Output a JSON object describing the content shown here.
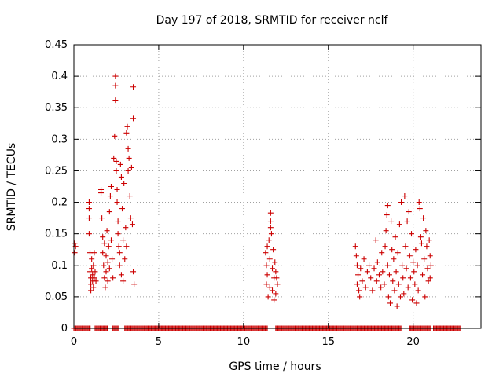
{
  "chart_data": {
    "type": "scatter",
    "title": "Day 197 of 2018, SRMTID for receiver nclf",
    "xlabel": "GPS time / hours",
    "ylabel": "SRMTID / TECUs",
    "xlim": [
      0,
      24
    ],
    "ylim": [
      0,
      0.45
    ],
    "xticks": [
      0,
      5,
      10,
      15,
      20
    ],
    "yticks": [
      0,
      0.05,
      0.1,
      0.15,
      0.2,
      0.25,
      0.3,
      0.35,
      0.4,
      0.45
    ],
    "xtick_labels": [
      "0",
      "5",
      "10",
      "15",
      "20"
    ],
    "ytick_labels": [
      "0",
      "0.05",
      "0.1",
      "0.15",
      "0.2",
      "0.25",
      "0.3",
      "0.35",
      "0.4",
      "0.45"
    ],
    "grid": true,
    "marker": "+",
    "color": "#cc0000",
    "points": [
      [
        0.05,
        0.135
      ],
      [
        0.05,
        0.12
      ],
      [
        0.1,
        0.13
      ],
      [
        0.9,
        0.2
      ],
      [
        0.9,
        0.19
      ],
      [
        0.9,
        0.175
      ],
      [
        0.9,
        0.15
      ],
      [
        0.95,
        0.12
      ],
      [
        0.95,
        0.09
      ],
      [
        1.0,
        0.08
      ],
      [
        1.0,
        0.07
      ],
      [
        1.0,
        0.06
      ],
      [
        1.05,
        0.11
      ],
      [
        1.05,
        0.095
      ],
      [
        1.1,
        0.085
      ],
      [
        1.1,
        0.075
      ],
      [
        1.15,
        0.1
      ],
      [
        1.15,
        0.065
      ],
      [
        1.2,
        0.12
      ],
      [
        1.2,
        0.08
      ],
      [
        1.25,
        0.09
      ],
      [
        1.3,
        0.075
      ],
      [
        1.6,
        0.22
      ],
      [
        1.6,
        0.215
      ],
      [
        1.65,
        0.175
      ],
      [
        1.7,
        0.145
      ],
      [
        1.7,
        0.12
      ],
      [
        1.75,
        0.1
      ],
      [
        1.8,
        0.135
      ],
      [
        1.8,
        0.08
      ],
      [
        1.85,
        0.065
      ],
      [
        1.9,
        0.115
      ],
      [
        1.9,
        0.09
      ],
      [
        1.95,
        0.155
      ],
      [
        2.0,
        0.105
      ],
      [
        2.0,
        0.075
      ],
      [
        2.05,
        0.13
      ],
      [
        2.1,
        0.185
      ],
      [
        2.1,
        0.095
      ],
      [
        2.15,
        0.21
      ],
      [
        2.2,
        0.225
      ],
      [
        2.2,
        0.14
      ],
      [
        2.25,
        0.11
      ],
      [
        2.3,
        0.08
      ],
      [
        2.35,
        0.27
      ],
      [
        2.4,
        0.305
      ],
      [
        2.45,
        0.4
      ],
      [
        2.45,
        0.385
      ],
      [
        2.45,
        0.362
      ],
      [
        2.5,
        0.265
      ],
      [
        2.5,
        0.25
      ],
      [
        2.55,
        0.22
      ],
      [
        2.55,
        0.2
      ],
      [
        2.6,
        0.17
      ],
      [
        2.6,
        0.15
      ],
      [
        2.65,
        0.13
      ],
      [
        2.7,
        0.12
      ],
      [
        2.7,
        0.1
      ],
      [
        2.75,
        0.26
      ],
      [
        2.8,
        0.24
      ],
      [
        2.8,
        0.085
      ],
      [
        2.85,
        0.19
      ],
      [
        2.9,
        0.14
      ],
      [
        2.9,
        0.075
      ],
      [
        2.95,
        0.23
      ],
      [
        3.0,
        0.11
      ],
      [
        3.05,
        0.16
      ],
      [
        3.1,
        0.31
      ],
      [
        3.1,
        0.13
      ],
      [
        3.15,
        0.32
      ],
      [
        3.2,
        0.285
      ],
      [
        3.2,
        0.25
      ],
      [
        3.25,
        0.27
      ],
      [
        3.3,
        0.21
      ],
      [
        3.35,
        0.175
      ],
      [
        3.4,
        0.255
      ],
      [
        3.45,
        0.165
      ],
      [
        3.5,
        0.383
      ],
      [
        3.5,
        0.333
      ],
      [
        3.5,
        0.09
      ],
      [
        3.55,
        0.07
      ],
      [
        11.3,
        0.12
      ],
      [
        11.35,
        0.1
      ],
      [
        11.35,
        0.07
      ],
      [
        11.4,
        0.13
      ],
      [
        11.4,
        0.085
      ],
      [
        11.45,
        0.05
      ],
      [
        11.5,
        0.14
      ],
      [
        11.55,
        0.11
      ],
      [
        11.55,
        0.065
      ],
      [
        11.6,
        0.183
      ],
      [
        11.6,
        0.17
      ],
      [
        11.6,
        0.16
      ],
      [
        11.65,
        0.15
      ],
      [
        11.7,
        0.095
      ],
      [
        11.7,
        0.06
      ],
      [
        11.75,
        0.125
      ],
      [
        11.8,
        0.08
      ],
      [
        11.8,
        0.045
      ],
      [
        11.85,
        0.105
      ],
      [
        11.9,
        0.09
      ],
      [
        11.9,
        0.055
      ],
      [
        11.95,
        0.08
      ],
      [
        12.0,
        0.07
      ],
      [
        16.6,
        0.13
      ],
      [
        16.65,
        0.115
      ],
      [
        16.7,
        0.1
      ],
      [
        16.7,
        0.07
      ],
      [
        16.75,
        0.085
      ],
      [
        16.8,
        0.06
      ],
      [
        16.85,
        0.05
      ],
      [
        16.9,
        0.095
      ],
      [
        17.0,
        0.075
      ],
      [
        17.1,
        0.11
      ],
      [
        17.2,
        0.065
      ],
      [
        17.3,
        0.09
      ],
      [
        17.4,
        0.1
      ],
      [
        17.5,
        0.08
      ],
      [
        17.6,
        0.06
      ],
      [
        17.7,
        0.095
      ],
      [
        17.8,
        0.14
      ],
      [
        17.85,
        0.075
      ],
      [
        17.9,
        0.105
      ],
      [
        18.0,
        0.085
      ],
      [
        18.1,
        0.065
      ],
      [
        18.15,
        0.12
      ],
      [
        18.2,
        0.09
      ],
      [
        18.3,
        0.07
      ],
      [
        18.35,
        0.13
      ],
      [
        18.4,
        0.155
      ],
      [
        18.45,
        0.18
      ],
      [
        18.5,
        0.195
      ],
      [
        18.5,
        0.1
      ],
      [
        18.55,
        0.05
      ],
      [
        18.6,
        0.085
      ],
      [
        18.65,
        0.04
      ],
      [
        18.7,
        0.17
      ],
      [
        18.75,
        0.125
      ],
      [
        18.8,
        0.075
      ],
      [
        18.85,
        0.11
      ],
      [
        18.9,
        0.06
      ],
      [
        18.95,
        0.145
      ],
      [
        19.0,
        0.09
      ],
      [
        19.05,
        0.035
      ],
      [
        19.1,
        0.12
      ],
      [
        19.15,
        0.07
      ],
      [
        19.2,
        0.165
      ],
      [
        19.25,
        0.05
      ],
      [
        19.3,
        0.2
      ],
      [
        19.35,
        0.1
      ],
      [
        19.4,
        0.08
      ],
      [
        19.45,
        0.055
      ],
      [
        19.5,
        0.21
      ],
      [
        19.55,
        0.13
      ],
      [
        19.6,
        0.095
      ],
      [
        19.65,
        0.17
      ],
      [
        19.7,
        0.065
      ],
      [
        19.75,
        0.185
      ],
      [
        19.8,
        0.115
      ],
      [
        19.85,
        0.08
      ],
      [
        19.9,
        0.15
      ],
      [
        19.95,
        0.045
      ],
      [
        20.0,
        0.105
      ],
      [
        20.05,
        0.09
      ],
      [
        20.1,
        0.07
      ],
      [
        20.15,
        0.125
      ],
      [
        20.2,
        0.04
      ],
      [
        20.25,
        0.1
      ],
      [
        20.3,
        0.06
      ],
      [
        20.35,
        0.2
      ],
      [
        20.4,
        0.19
      ],
      [
        20.45,
        0.145
      ],
      [
        20.5,
        0.135
      ],
      [
        20.55,
        0.085
      ],
      [
        20.6,
        0.175
      ],
      [
        20.65,
        0.11
      ],
      [
        20.7,
        0.05
      ],
      [
        20.75,
        0.155
      ],
      [
        20.8,
        0.13
      ],
      [
        20.85,
        0.095
      ],
      [
        20.9,
        0.075
      ],
      [
        20.95,
        0.14
      ],
      [
        21.0,
        0.115
      ],
      [
        21.0,
        0.08
      ],
      [
        21.05,
        0.1
      ]
    ],
    "zero_band": {
      "y": 0,
      "segments": [
        [
          0.0,
          1.0
        ],
        [
          1.25,
          2.0
        ],
        [
          2.3,
          2.7
        ],
        [
          3.0,
          11.4
        ],
        [
          11.9,
          19.3
        ],
        [
          19.8,
          21.0
        ],
        [
          21.2,
          22.8
        ]
      ]
    }
  }
}
